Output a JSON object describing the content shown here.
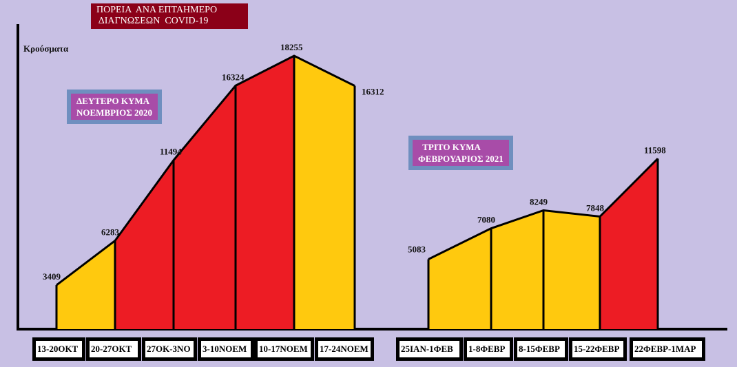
{
  "title": "ΠΟΡΕΙΑ  ΑΝΑ ΕΠΤΑΗΜΕΡΟ\n ΔΙΑΓΝΩΣΕΩΝ  COVID-19",
  "ylabel": "Κρούσματα",
  "notes": {
    "second_wave": "ΔΕΥΤΕΡΟ ΚΥΜΑ\nΝΟΕΜΒΡΙΟΣ 2020",
    "third_wave": "  ΤΡΙΤΟ ΚΥΜΑ\nΦΕΒΡΟΥΑΡΙΟΣ 2021"
  },
  "colors": {
    "yellow": "#ffc90e",
    "red": "#ed1c24"
  },
  "chart_data": {
    "type": "area",
    "title": "ΠΟΡΕΙΑ ΑΝΑ ΕΠΤΑΗΜΕΡΟ ΔΙΑΓΝΩΣΕΩΝ COVID-19",
    "ylabel": "Κρούσματα",
    "series": [
      {
        "name": "ΔΕΥΤΕΡΟ ΚΥΜΑ ΝΟΕΜΒΡΙΟΣ 2020",
        "categories": [
          "13-20ΟΚΤ",
          "20-27ΟΚΤ",
          "27ΟΚ-3ΝΟ",
          "3-10ΝΟΕΜ",
          "10-17ΝΟΕΜ",
          "17-24ΝΟΕΜ"
        ],
        "values": [
          3409,
          6283,
          11494,
          16324,
          18255,
          16312
        ],
        "segment_colors": [
          "yellow",
          "red",
          "red",
          "red",
          "yellow"
        ]
      },
      {
        "name": "ΤΡΙΤΟ ΚΥΜΑ ΦΕΒΡΟΥΑΡΙΟΣ 2021",
        "categories": [
          "25ΙΑΝ-1ΦΕΒ",
          "1-8ΦΕΒΡ",
          "8-15ΦΕΒΡ",
          "15-22ΦΕΒΡ",
          "22ΦΕΒΡ-1ΜΑΡ"
        ],
        "values": [
          5083,
          7080,
          8249,
          7848,
          11598
        ],
        "segment_colors": [
          "yellow",
          "yellow",
          "yellow",
          "red"
        ]
      }
    ]
  }
}
